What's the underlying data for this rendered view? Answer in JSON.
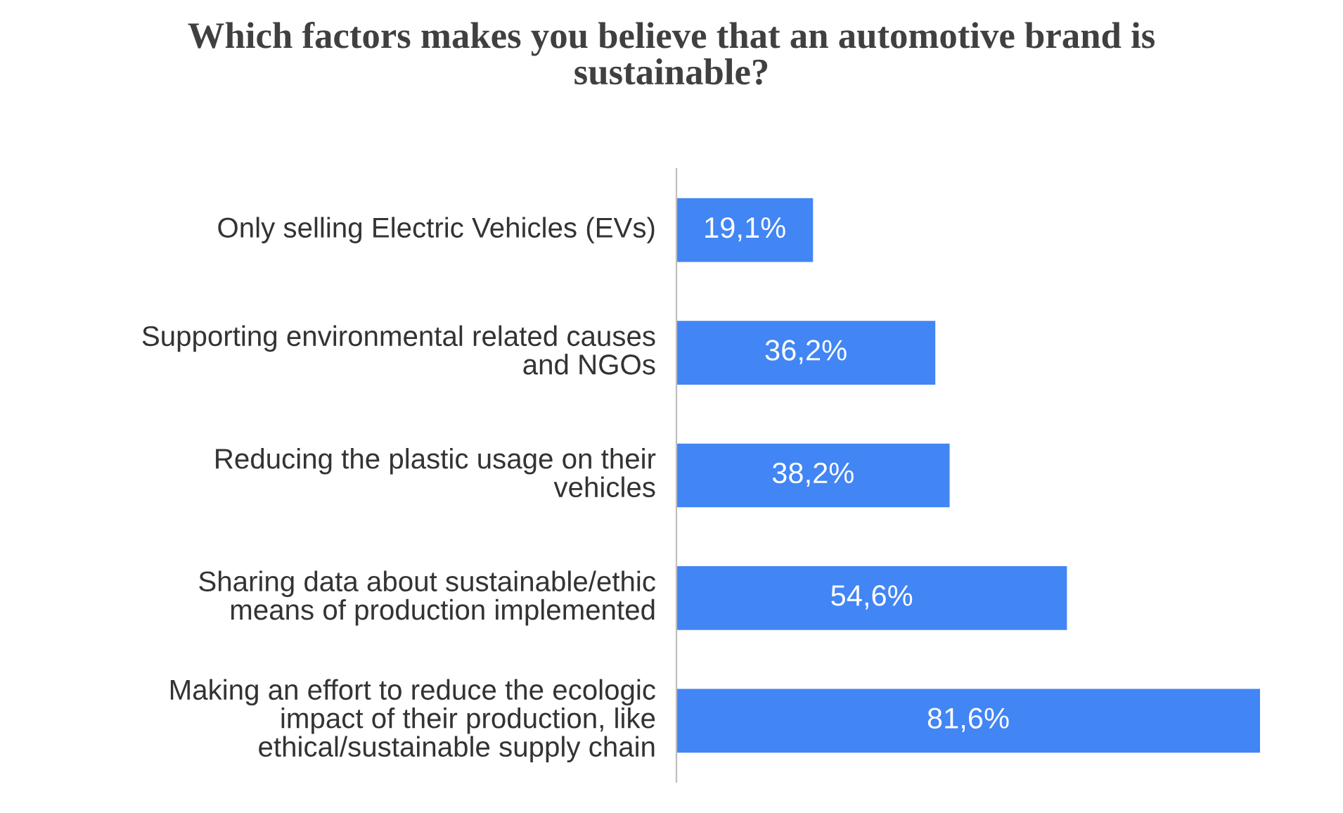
{
  "chart_data": {
    "type": "bar",
    "orientation": "horizontal",
    "title": "Which factors makes you believe that an automotive brand is\nsustainable?",
    "categories": [
      "Only selling Electric Vehicles (EVs)",
      "Supporting environmental related causes\nand NGOs",
      "Reducing the plastic usage on their\nvehicles",
      "Sharing data about sustainable/ethic\nmeans of production implemented",
      "Making an effort to reduce the ecologic\nimpact of their production, like\nethical/sustainable supply chain"
    ],
    "values": [
      19.1,
      36.2,
      38.2,
      54.6,
      81.6
    ],
    "value_labels": [
      "19,1%",
      "36,2%",
      "38,2%",
      "54,6%",
      "81,6%"
    ],
    "color": "#4285f4",
    "grid": false,
    "legend": false
  }
}
